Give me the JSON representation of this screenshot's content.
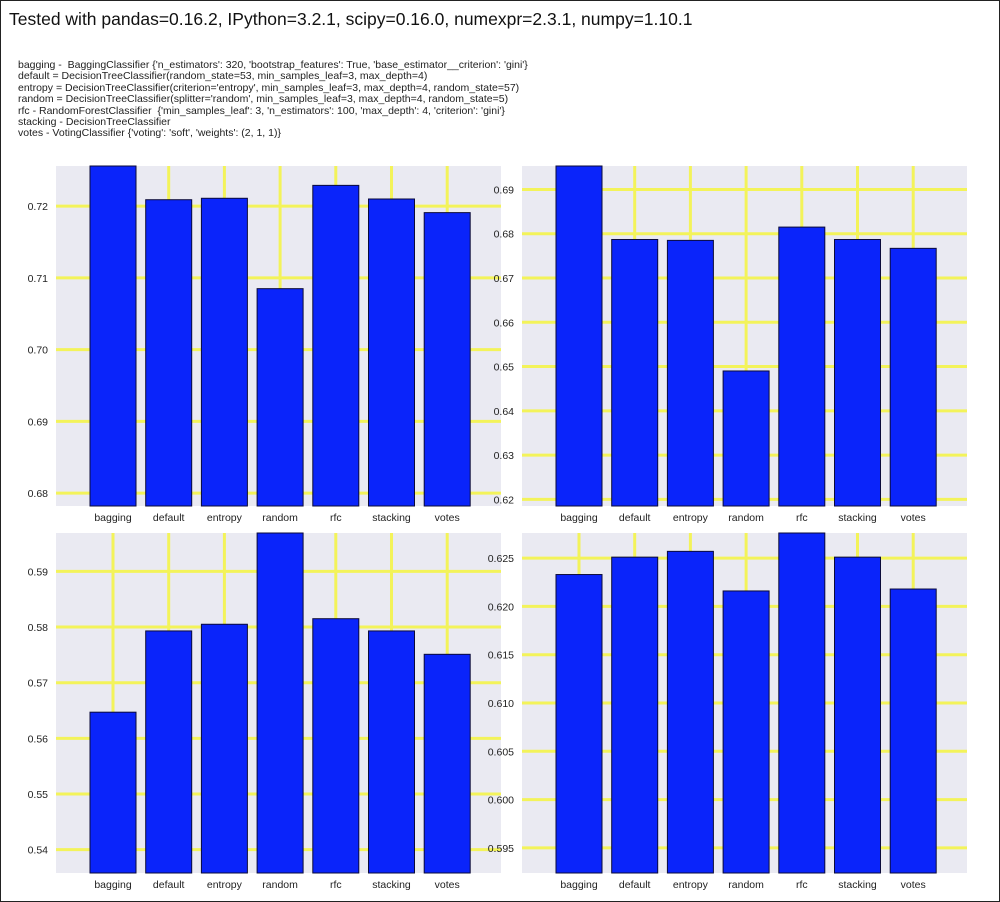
{
  "header": {
    "title": "Tested with pandas=0.16.2, IPython=3.2.1, scipy=0.16.0, numexpr=2.3.1, numpy=1.10.1"
  },
  "legend_lines": [
    "bagging -  BaggingClassifier {'n_estimators': 320, 'bootstrap_features': True, 'base_estimator__criterion': 'gini'}",
    "default = DecisionTreeClassifier(random_state=53, min_samples_leaf=3, max_depth=4)",
    "entropy = DecisionTreeClassifier(criterion='entropy', min_samples_leaf=3, max_depth=4, random_state=57)",
    "random = DecisionTreeClassifier(splitter='random', min_samples_leaf=3, max_depth=4, random_state=5)",
    "rfc - RandomForestClassifier  {'min_samples_leaf': 3, 'n_estimators': 100, 'max_depth': 4, 'criterion': 'gini'}",
    "stacking - DecisionTreeClassifier",
    "votes - VotingClassifier {'voting': 'soft', 'weights': (2, 1, 1)}"
  ],
  "colors": {
    "bar": "#0a24fa",
    "bar_edge": "#0b0b3a",
    "plot_bg": "#eaeaf2",
    "grid": "#f3f35a"
  },
  "chart_data": [
    {
      "type": "bar",
      "categories": [
        "bagging",
        "default",
        "entropy",
        "random",
        "rfc",
        "stacking",
        "votes"
      ],
      "values": [
        0.7256,
        0.7209,
        0.7211,
        0.7085,
        0.7229,
        0.721,
        0.7191
      ],
      "yticks": [
        0.68,
        0.69,
        0.7,
        0.71,
        0.72
      ],
      "ytick_labels": [
        "0.68",
        "0.69",
        "0.70",
        "0.71",
        "0.72"
      ],
      "ylim": [
        0.6782,
        0.7256
      ],
      "grid": true
    },
    {
      "type": "bar",
      "categories": [
        "bagging",
        "default",
        "entropy",
        "random",
        "rfc",
        "stacking",
        "votes"
      ],
      "values": [
        0.6953,
        0.6787,
        0.6785,
        0.649,
        0.6815,
        0.6787,
        0.6767
      ],
      "yticks": [
        0.62,
        0.63,
        0.64,
        0.65,
        0.66,
        0.67,
        0.68,
        0.69
      ],
      "ytick_labels": [
        "0.62",
        "0.63",
        "0.64",
        "0.65",
        "0.66",
        "0.67",
        "0.68",
        "0.69"
      ],
      "ylim": [
        0.6185,
        0.6953
      ],
      "grid": true
    },
    {
      "type": "bar",
      "categories": [
        "bagging",
        "default",
        "entropy",
        "random",
        "rfc",
        "stacking",
        "votes"
      ],
      "values": [
        0.5647,
        0.5793,
        0.5805,
        0.5969,
        0.5815,
        0.5793,
        0.5751
      ],
      "yticks": [
        0.54,
        0.55,
        0.56,
        0.57,
        0.58,
        0.59
      ],
      "ytick_labels": [
        "0.54",
        "0.55",
        "0.56",
        "0.57",
        "0.58",
        "0.59"
      ],
      "ylim": [
        0.5358,
        0.5969
      ],
      "grid": true
    },
    {
      "type": "bar",
      "categories": [
        "bagging",
        "default",
        "entropy",
        "random",
        "rfc",
        "stacking",
        "votes"
      ],
      "values": [
        0.6233,
        0.6251,
        0.6257,
        0.6216,
        0.6276,
        0.6251,
        0.6218
      ],
      "yticks": [
        0.595,
        0.6,
        0.605,
        0.61,
        0.615,
        0.62,
        0.625
      ],
      "ytick_labels": [
        "0.595",
        "0.600",
        "0.605",
        "0.610",
        "0.615",
        "0.620",
        "0.625"
      ],
      "ylim": [
        0.5924,
        0.6276
      ],
      "grid": true
    }
  ]
}
